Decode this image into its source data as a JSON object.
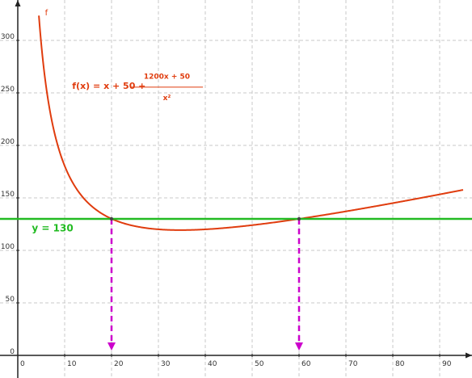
{
  "chart_data": {
    "type": "line",
    "title": "",
    "xlabel": "",
    "ylabel": "",
    "xlim": [
      0,
      95
    ],
    "ylim": [
      0,
      330
    ],
    "x_ticks": [
      0,
      10,
      20,
      30,
      40,
      50,
      60,
      70,
      80,
      90
    ],
    "y_ticks": [
      0,
      50,
      100,
      150,
      200,
      250,
      300
    ],
    "grid": true,
    "series": [
      {
        "name": "f",
        "color": "#e03c0e",
        "formula": {
          "lhs": "f(x) = x + 50 +",
          "numerator": "1200x + 50",
          "denominator": "x²"
        },
        "x_from": 4.5,
        "x_to": 95
      },
      {
        "name": "y = 130",
        "color": "#22bb22",
        "y": 130
      }
    ],
    "annotations": [
      {
        "type": "dashed-arrow-down",
        "x": 20,
        "y_from": 130,
        "y_to": 0,
        "color": "#cc00cc"
      },
      {
        "type": "dashed-arrow-down",
        "x": 60,
        "y_from": 130,
        "y_to": 0,
        "color": "#cc00cc"
      }
    ]
  }
}
